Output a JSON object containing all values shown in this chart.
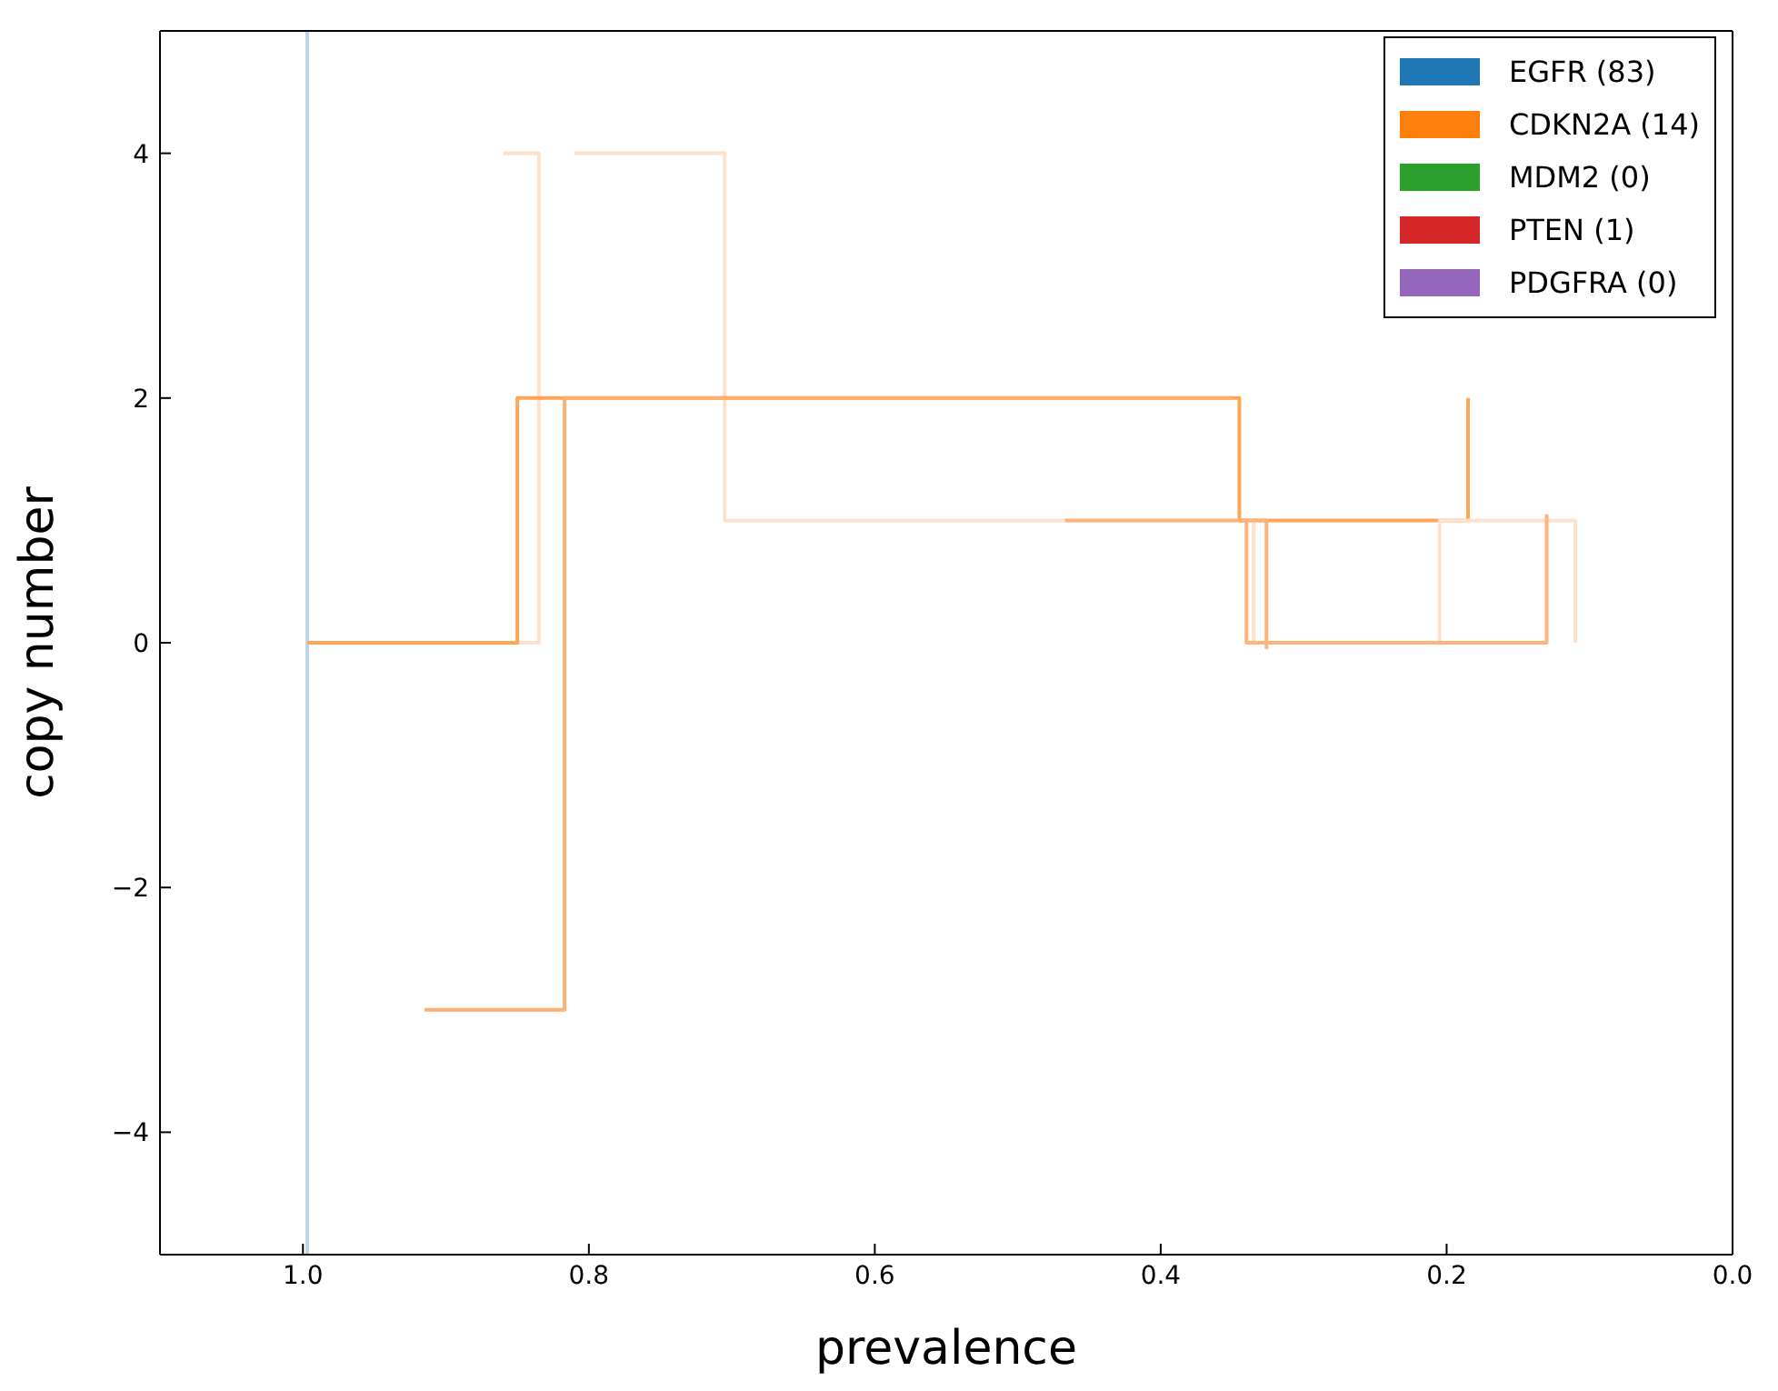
{
  "chart_data": {
    "type": "line",
    "xlabel": "prevalence",
    "ylabel": "copy number",
    "xlim": [
      1.1,
      0.0
    ],
    "xticks": [
      {
        "value": 1,
        "label": "1.0"
      },
      0.8,
      0.6,
      0.4,
      0.2,
      {
        "value": 0,
        "label": "0.0"
      }
    ],
    "ylim": [
      -5,
      5
    ],
    "yticks": [
      -4,
      -2,
      0,
      2,
      4
    ],
    "legend": "top right",
    "marker": "none",
    "line_style": "solid",
    "series": [
      {
        "name": "EGFR (83)",
        "color": "#1f77b4"
      },
      {
        "name": "CDKN2A (14)",
        "color": "#ff7f0e"
      },
      {
        "name": "MDM2 (0)",
        "color": "#2ca02c"
      },
      {
        "name": "PTEN (1)",
        "color": "#d62728"
      },
      {
        "name": "PDGFRA (0)",
        "color": "#9467bd"
      },
      {
        "color": "#bcd6ea",
        "x": [
          0.997,
          0.997
        ],
        "values": [
          -5,
          5
        ]
      },
      {
        "color": "#ffe2cc",
        "x": [
          0.85,
          0.835,
          0.835,
          0.86
        ],
        "values": [
          0,
          0,
          4,
          4
        ]
      },
      {
        "color": "#ffe2cc",
        "x": [
          0.81,
          0.705,
          0.705,
          0.345
        ],
        "values": [
          4,
          4,
          1,
          1
        ]
      },
      {
        "color": "#ffa556",
        "x": [
          0.997,
          0.85,
          0.85,
          0.345,
          0.345,
          0.185,
          0.185
        ],
        "values": [
          0,
          0,
          2,
          2,
          1,
          1,
          2
        ]
      },
      {
        "color": "#ffb070",
        "x": [
          0.915,
          0.817,
          0.817,
          0.35
        ],
        "values": [
          -3,
          -3,
          2,
          2
        ]
      },
      {
        "color": "#ffe2cc",
        "x": [
          0.335,
          0.335,
          0.205,
          0.205,
          0.11,
          0.11
        ],
        "values": [
          1,
          0,
          0,
          1,
          1,
          0
        ]
      },
      {
        "color": "#ffb27a",
        "x": [
          0.467,
          0.34,
          0.34,
          0.13,
          0.13
        ],
        "values": [
          1,
          1,
          0,
          0,
          1.05
        ]
      },
      {
        "color": "#ffb27a",
        "x": [
          0.345,
          0.326,
          0.326
        ],
        "values": [
          1,
          1,
          -0.05
        ]
      }
    ]
  }
}
